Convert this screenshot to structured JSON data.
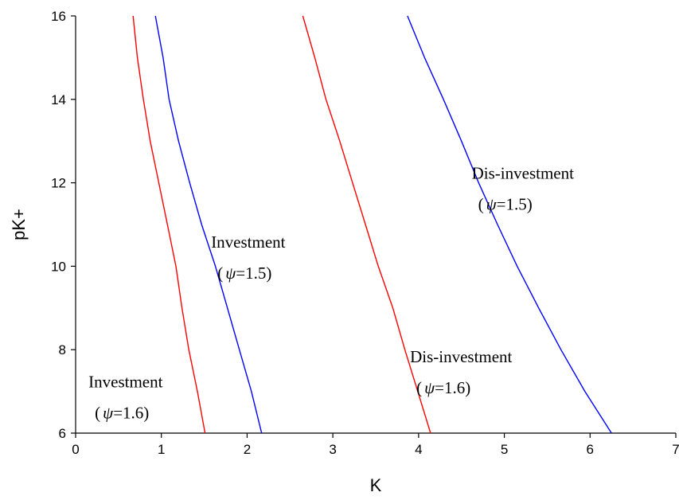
{
  "chart_data": {
    "type": "line",
    "xlabel": "K",
    "ylabel": "pK+",
    "xlim": [
      0,
      7
    ],
    "ylim": [
      6,
      16
    ],
    "xticks": [
      0,
      1,
      2,
      3,
      4,
      5,
      6,
      7
    ],
    "yticks": [
      6,
      8,
      10,
      12,
      14,
      16
    ],
    "grid": false,
    "legend": "none",
    "series": [
      {
        "color": "#ff0000",
        "points": [
          [
            0.67,
            16
          ],
          [
            0.72,
            15
          ],
          [
            0.79,
            14
          ],
          [
            0.87,
            13
          ],
          [
            0.97,
            12
          ],
          [
            1.07,
            11
          ],
          [
            1.17,
            10
          ],
          [
            1.24,
            9
          ],
          [
            1.32,
            8
          ],
          [
            1.42,
            7
          ],
          [
            1.51,
            6
          ]
        ]
      },
      {
        "color": "#0000ff",
        "points": [
          [
            0.93,
            16
          ],
          [
            1.02,
            15
          ],
          [
            1.09,
            14
          ],
          [
            1.2,
            13
          ],
          [
            1.33,
            12
          ],
          [
            1.47,
            11
          ],
          [
            1.63,
            10
          ],
          [
            1.77,
            9
          ],
          [
            1.91,
            8
          ],
          [
            2.05,
            7
          ],
          [
            2.17,
            6
          ]
        ]
      },
      {
        "color": "#ff0000",
        "points": [
          [
            2.65,
            16
          ],
          [
            2.79,
            15
          ],
          [
            2.92,
            14
          ],
          [
            3.08,
            13
          ],
          [
            3.23,
            12
          ],
          [
            3.38,
            11
          ],
          [
            3.53,
            10
          ],
          [
            3.7,
            9
          ],
          [
            3.84,
            8
          ],
          [
            3.99,
            7
          ],
          [
            4.14,
            6
          ]
        ]
      },
      {
        "color": "#0000ff",
        "points": [
          [
            3.87,
            16
          ],
          [
            4.07,
            15
          ],
          [
            4.29,
            14
          ],
          [
            4.5,
            13
          ],
          [
            4.7,
            12
          ],
          [
            4.92,
            11
          ],
          [
            5.15,
            10
          ],
          [
            5.4,
            9
          ],
          [
            5.66,
            8
          ],
          [
            5.94,
            7
          ],
          [
            6.25,
            6
          ]
        ]
      }
    ],
    "annotations": [
      {
        "line1": "Investment",
        "open": "(",
        "psi": "ψ",
        "value": "=1.6)",
        "x": 0.15,
        "y1": 7.1,
        "y2": 6.35
      },
      {
        "line1": "Investment",
        "open": "(",
        "psi": "ψ",
        "value": "=1.5)",
        "x": 1.58,
        "y1": 10.45,
        "y2": 9.7
      },
      {
        "line1": "Dis-investment",
        "open": "(",
        "psi": "ψ",
        "value": "=1.6)",
        "x": 3.9,
        "y1": 7.7,
        "y2": 6.95
      },
      {
        "line1": "Dis-investment",
        "open": "(",
        "psi": "ψ",
        "value": "=1.5)",
        "x": 4.62,
        "y1": 12.1,
        "y2": 11.35
      }
    ]
  }
}
